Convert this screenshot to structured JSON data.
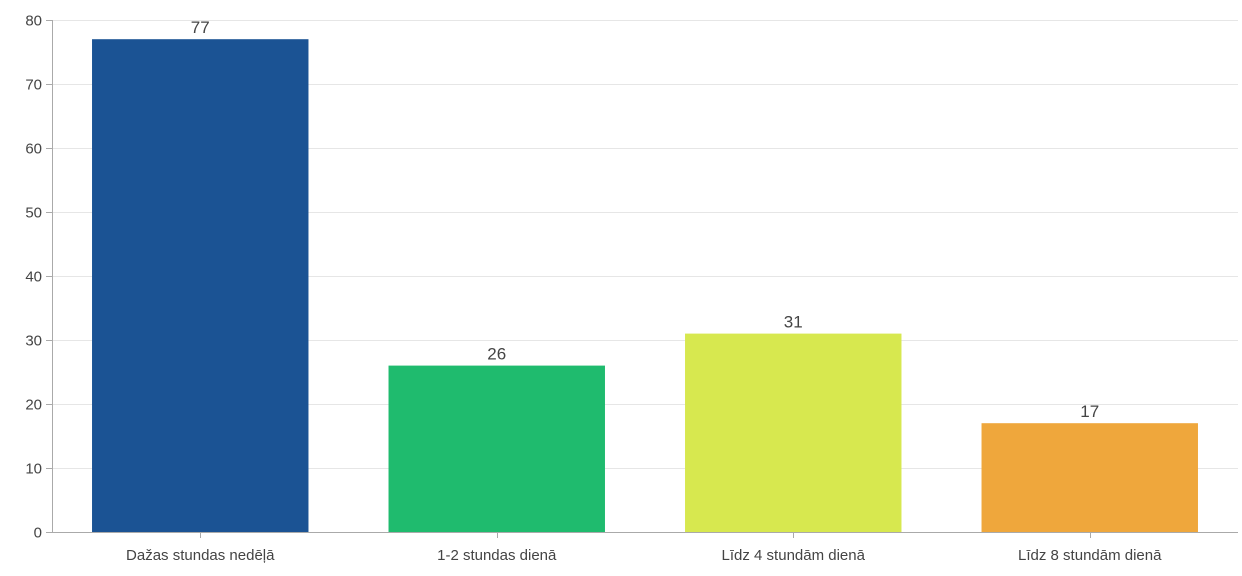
{
  "chart_data": {
    "type": "bar",
    "title": "",
    "xlabel": "",
    "ylabel": "",
    "ylim": [
      0,
      80
    ],
    "yticks": [
      0,
      10,
      20,
      30,
      40,
      50,
      60,
      70,
      80
    ],
    "grid": true,
    "categories": [
      "Dažas stundas nedēļā",
      "1-2 stundas dienā",
      "Līdz 4 stundām dienā",
      "Līdz 8 stundām dienā"
    ],
    "values": [
      77,
      26,
      31,
      17
    ],
    "data_labels": [
      "77",
      "26",
      "31",
      "17"
    ],
    "colors": [
      "#1b5394",
      "#1fbb6e",
      "#d7e84f",
      "#efa73c"
    ]
  }
}
